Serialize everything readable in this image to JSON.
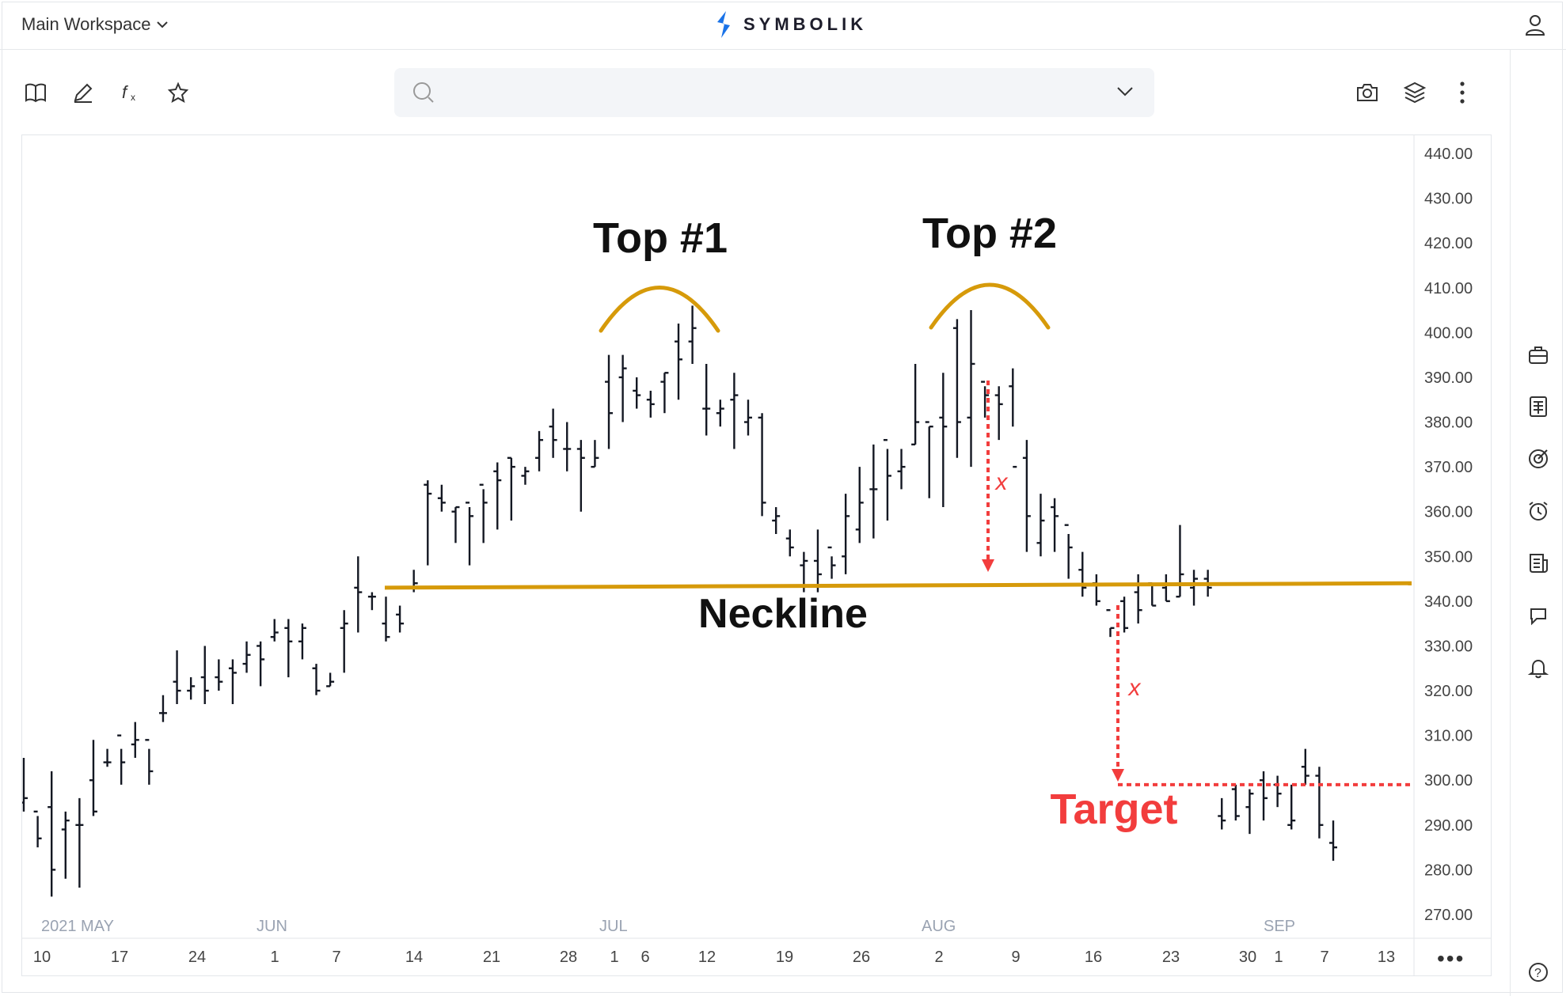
{
  "workspace": {
    "label": "Main Workspace"
  },
  "brand": {
    "name": "SYMBOLIK",
    "accent": "#1a73e8"
  },
  "toolbar": {
    "left_icons": [
      "book-icon",
      "pencil-icon",
      "function-icon",
      "star-icon"
    ],
    "right_icons": [
      "camera-icon",
      "layers-icon",
      "more-vertical-icon"
    ]
  },
  "search": {
    "value": "",
    "placeholder": ""
  },
  "sidebar_icons": [
    "briefcase-icon",
    "calculator-icon",
    "target-icon",
    "alarm-clock-icon",
    "news-icon",
    "chat-icon",
    "bell-icon",
    "help-icon"
  ],
  "chart_data": {
    "type": "ohlc-bar",
    "price_axis": [
      "440.00",
      "430.00",
      "420.00",
      "410.00",
      "400.00",
      "390.00",
      "380.00",
      "370.00",
      "360.00",
      "350.00",
      "340.00",
      "330.00",
      "320.00",
      "310.00",
      "300.00",
      "290.00",
      "280.00",
      "270.00"
    ],
    "ylim": [
      270,
      440
    ],
    "month_labels": [
      "2021 MAY",
      "JUN",
      "JUL",
      "AUG",
      "SEP"
    ],
    "date_labels": [
      "10",
      "17",
      "24",
      "1",
      "7",
      "14",
      "21",
      "28",
      "1",
      "6",
      "12",
      "19",
      "26",
      "2",
      "9",
      "16",
      "23",
      "30",
      "1",
      "7",
      "13"
    ],
    "bars": [
      [
        295,
        305,
        293,
        296
      ],
      [
        293,
        292,
        285,
        287
      ],
      [
        294,
        302,
        274,
        280
      ],
      [
        289,
        293,
        278,
        291
      ],
      [
        290,
        296,
        276,
        290
      ],
      [
        300,
        309,
        292,
        293
      ],
      [
        304,
        307,
        303,
        304
      ],
      [
        310,
        307,
        299,
        304
      ],
      [
        308,
        313,
        305,
        309
      ],
      [
        309,
        307,
        299,
        302
      ],
      [
        315,
        319,
        313,
        315
      ],
      [
        322,
        329,
        317,
        320
      ],
      [
        320,
        323,
        318,
        321
      ],
      [
        323,
        330,
        317,
        320
      ],
      [
        323,
        327,
        320,
        322
      ],
      [
        325,
        327,
        317,
        324
      ],
      [
        326,
        331,
        324,
        328
      ],
      [
        330,
        331,
        321,
        327
      ],
      [
        332,
        336,
        331,
        333
      ],
      [
        334,
        336,
        323,
        331
      ],
      [
        331,
        335,
        327,
        334
      ],
      [
        325,
        326,
        319,
        320
      ],
      [
        321,
        324,
        321,
        322
      ],
      [
        334,
        338,
        324,
        335
      ],
      [
        343,
        350,
        333,
        342
      ],
      [
        341,
        342,
        338,
        341
      ],
      [
        335,
        341,
        331,
        332
      ],
      [
        337,
        339,
        333,
        335
      ],
      [
        343,
        347,
        342,
        344
      ],
      [
        366,
        367,
        348,
        364
      ],
      [
        363,
        366,
        360,
        362
      ],
      [
        360,
        361,
        353,
        361
      ],
      [
        362,
        361,
        348,
        359
      ],
      [
        366,
        365,
        353,
        362
      ],
      [
        369,
        371,
        356,
        367
      ],
      [
        372,
        372,
        358,
        370
      ],
      [
        368,
        370,
        366,
        369
      ],
      [
        372,
        378,
        369,
        376
      ],
      [
        379,
        383,
        372,
        376
      ],
      [
        374,
        380,
        369,
        374
      ],
      [
        374,
        376,
        360,
        372
      ],
      [
        370,
        376,
        370,
        372
      ],
      [
        389,
        395,
        374,
        382
      ],
      [
        390,
        395,
        380,
        392
      ],
      [
        387,
        390,
        383,
        386
      ],
      [
        385,
        387,
        381,
        384
      ],
      [
        389,
        391,
        382,
        391
      ],
      [
        398,
        402,
        385,
        394
      ],
      [
        398,
        406,
        393,
        401
      ],
      [
        383,
        393,
        377,
        383
      ],
      [
        382,
        385,
        379,
        383
      ],
      [
        385,
        391,
        374,
        386
      ],
      [
        380,
        385,
        377,
        381
      ],
      [
        381,
        382,
        359,
        362
      ],
      [
        358,
        361,
        355,
        359
      ],
      [
        354,
        356,
        350,
        352
      ],
      [
        348,
        351,
        342,
        349
      ],
      [
        349,
        356,
        342,
        346
      ],
      [
        352,
        350,
        345,
        348
      ],
      [
        350,
        364,
        346,
        359
      ],
      [
        356,
        370,
        353,
        362
      ],
      [
        365,
        375,
        354,
        365
      ],
      [
        376,
        374,
        358,
        368
      ],
      [
        369,
        374,
        365,
        370
      ],
      [
        375,
        393,
        375,
        380
      ],
      [
        380,
        379,
        363,
        379
      ],
      [
        381,
        391,
        361,
        379
      ],
      [
        401,
        403,
        372,
        380
      ],
      [
        381,
        405,
        370,
        393
      ],
      [
        389,
        388,
        381,
        386
      ],
      [
        386,
        388,
        376,
        384
      ],
      [
        388,
        392,
        379,
        370
      ],
      [
        372,
        376,
        351,
        359
      ],
      [
        353,
        364,
        350,
        358
      ],
      [
        361,
        363,
        351,
        359
      ],
      [
        357,
        355,
        345,
        352
      ],
      [
        347,
        351,
        341,
        343
      ],
      [
        344,
        346,
        339,
        340
      ],
      [
        338,
        334,
        332,
        334
      ],
      [
        340,
        341,
        333,
        334
      ],
      [
        342,
        346,
        335,
        338
      ],
      [
        344,
        344,
        339,
        339
      ],
      [
        343,
        346,
        340,
        340
      ],
      [
        341,
        357,
        341,
        346
      ],
      [
        343,
        347,
        339,
        345
      ],
      [
        345,
        347,
        341,
        343
      ],
      [
        292,
        296,
        289,
        291
      ],
      [
        298,
        299,
        291,
        292
      ],
      [
        294,
        298,
        288,
        297
      ],
      [
        300,
        302,
        291,
        296
      ],
      [
        299,
        301,
        294,
        297
      ],
      [
        290,
        299,
        289,
        291
      ],
      [
        303,
        307,
        299,
        301
      ],
      [
        301,
        303,
        287,
        290
      ],
      [
        286,
        291,
        282,
        285
      ]
    ],
    "neckline": [
      343,
      344
    ],
    "annotations": {
      "top1": "Top #1",
      "top2": "Top #2",
      "neckline": "Neckline",
      "target": "Target",
      "x1": "x",
      "x2": "x"
    },
    "target_price": 299,
    "colors": {
      "bars": "#131722",
      "neckline": "#d69a0a",
      "target": "#f23d3d",
      "axis_text": "#444",
      "month_text": "#9aa3b2"
    }
  }
}
